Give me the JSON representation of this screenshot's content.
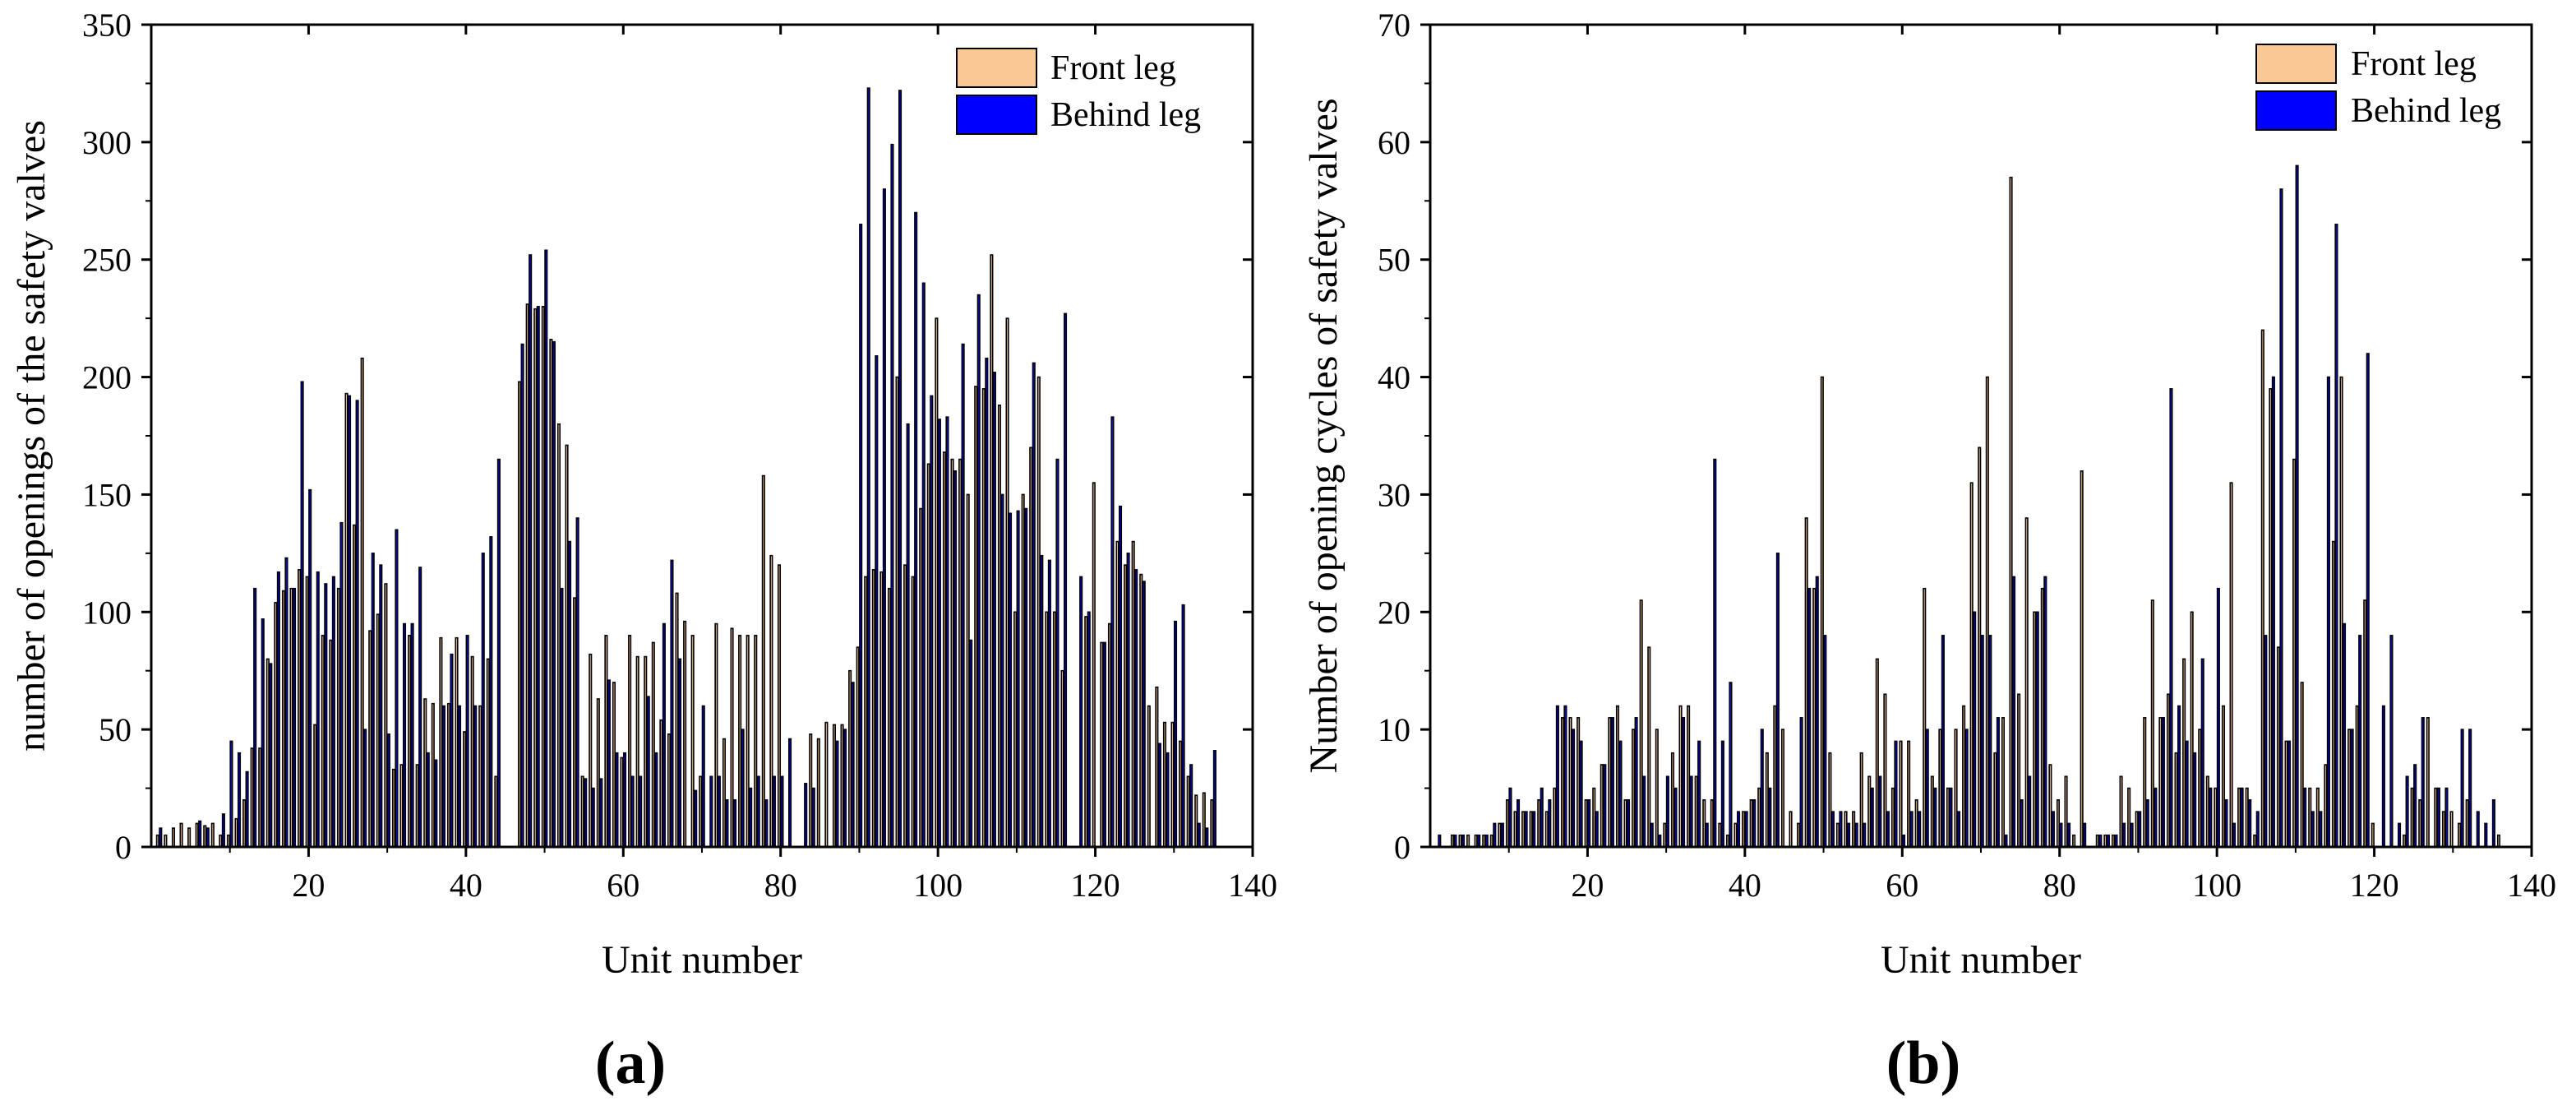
{
  "chart_data": [
    {
      "panel": "(a)",
      "type": "bar",
      "title": "",
      "xlabel": "Unit number",
      "ylabel": "number of openings of the safety valves",
      "xlim": [
        0,
        140
      ],
      "ylim": [
        0,
        350
      ],
      "xticks": [
        "20",
        "40",
        "60",
        "80",
        "100",
        "120",
        "140"
      ],
      "xtick_values": [
        20,
        40,
        60,
        80,
        100,
        120,
        140
      ],
      "yticks": [
        "0",
        "50",
        "100",
        "150",
        "200",
        "250",
        "300",
        "350"
      ],
      "ytick_values": [
        0,
        50,
        100,
        150,
        200,
        250,
        300,
        350
      ],
      "legend_position": "top-right",
      "series": [
        {
          "name": "Front leg",
          "color": "#F9C895",
          "values": [
            5,
            5,
            8,
            10,
            8,
            10,
            9,
            10,
            5,
            5,
            12,
            20,
            42,
            42,
            80,
            104,
            109,
            110,
            118,
            115,
            52,
            90,
            88,
            110,
            193,
            137,
            208,
            92,
            99,
            112,
            33,
            35,
            90,
            35,
            63,
            61,
            89,
            61,
            89,
            49,
            81,
            60,
            80,
            30,
            0,
            0,
            198,
            231,
            229,
            230,
            216,
            180,
            171,
            106,
            30,
            82,
            63,
            90,
            70,
            38,
            90,
            81,
            81,
            87,
            54,
            48,
            108,
            96,
            90,
            30,
            0,
            95,
            46,
            93,
            90,
            90,
            90,
            158,
            124,
            120,
            0,
            0,
            0,
            48,
            46,
            53,
            52,
            52,
            75,
            85,
            115,
            118,
            117,
            110,
            200,
            120,
            115,
            144,
            163,
            225,
            168,
            165,
            165,
            150,
            196,
            195,
            252,
            188,
            225,
            100,
            150,
            170,
            200,
            100,
            100,
            75,
            0,
            0,
            98,
            155,
            87,
            95,
            130,
            120,
            130,
            116,
            60,
            68,
            53,
            53,
            45,
            30,
            22,
            23,
            20,
            0
          ]
        },
        {
          "name": "Behind leg",
          "color": "#0000FF",
          "values": [
            8,
            0,
            0,
            0,
            0,
            11,
            8,
            0,
            14,
            45,
            40,
            32,
            110,
            97,
            78,
            117,
            123,
            110,
            198,
            152,
            117,
            112,
            115,
            138,
            192,
            190,
            50,
            125,
            120,
            48,
            135,
            95,
            95,
            119,
            40,
            37,
            60,
            82,
            60,
            90,
            60,
            125,
            132,
            165,
            0,
            0,
            214,
            252,
            230,
            254,
            215,
            110,
            130,
            140,
            29,
            25,
            29,
            71,
            40,
            40,
            30,
            30,
            64,
            40,
            95,
            122,
            80,
            0,
            24,
            60,
            30,
            30,
            20,
            20,
            50,
            25,
            30,
            20,
            30,
            30,
            46,
            0,
            27,
            25,
            0,
            0,
            45,
            50,
            70,
            265,
            323,
            209,
            280,
            299,
            322,
            180,
            270,
            240,
            192,
            182,
            183,
            160,
            214,
            88,
            235,
            208,
            202,
            150,
            142,
            143,
            144,
            206,
            124,
            122,
            165,
            227,
            0,
            115,
            100,
            0,
            87,
            183,
            145,
            125,
            118,
            113,
            0,
            44,
            40,
            96,
            103,
            35,
            10,
            8,
            41,
            0
          ]
        }
      ]
    },
    {
      "panel": "(b)",
      "type": "bar",
      "title": "",
      "xlabel": "Unit number",
      "ylabel": "Number of opening cycles of safety valves",
      "xlim": [
        0,
        140
      ],
      "ylim": [
        0,
        70
      ],
      "xticks": [
        "20",
        "40",
        "60",
        "80",
        "100",
        "120",
        "140"
      ],
      "xtick_values": [
        20,
        40,
        60,
        80,
        100,
        120,
        140
      ],
      "yticks": [
        "0",
        "10",
        "20",
        "30",
        "40",
        "50",
        "60",
        "70"
      ],
      "ytick_values": [
        0,
        10,
        20,
        30,
        40,
        50,
        60,
        70
      ],
      "legend_position": "top-right",
      "series": [
        {
          "name": "Front leg",
          "color": "#F9C895",
          "values": [
            0,
            0,
            1,
            1,
            1,
            1,
            1,
            1,
            2,
            4,
            3,
            3,
            3,
            4,
            3,
            5,
            11,
            11,
            11,
            4,
            5,
            7,
            11,
            12,
            4,
            10,
            21,
            17,
            10,
            2,
            8,
            12,
            12,
            6,
            4,
            4,
            2,
            1,
            2,
            3,
            4,
            5,
            8,
            12,
            10,
            3,
            2,
            28,
            22,
            40,
            8,
            2,
            3,
            3,
            8,
            6,
            16,
            13,
            5,
            9,
            9,
            4,
            22,
            6,
            10,
            5,
            10,
            12,
            31,
            34,
            40,
            8,
            11,
            57,
            13,
            28,
            20,
            22,
            7,
            4,
            6,
            1,
            32,
            0,
            1,
            1,
            1,
            6,
            5,
            3,
            11,
            21,
            11,
            13,
            8,
            16,
            20,
            10,
            6,
            5,
            12,
            31,
            5,
            5,
            1,
            44,
            39,
            17,
            9,
            33,
            14,
            5,
            5,
            7,
            26,
            40,
            10,
            12,
            21,
            2,
            0,
            0,
            0,
            1,
            5,
            4,
            11,
            5,
            3,
            3,
            2,
            4,
            0,
            0,
            0,
            1
          ]
        },
        {
          "name": "Behind leg",
          "color": "#0000FF",
          "values": [
            1,
            0,
            1,
            1,
            0,
            1,
            1,
            2,
            2,
            5,
            4,
            3,
            3,
            5,
            4,
            12,
            12,
            10,
            9,
            4,
            3,
            7,
            11,
            9,
            4,
            11,
            6,
            2,
            1,
            6,
            5,
            11,
            6,
            9,
            2,
            33,
            9,
            14,
            3,
            3,
            4,
            10,
            5,
            25,
            0,
            0,
            11,
            22,
            23,
            18,
            3,
            3,
            2,
            2,
            2,
            5,
            6,
            3,
            9,
            1,
            3,
            3,
            10,
            5,
            18,
            5,
            3,
            10,
            20,
            18,
            18,
            11,
            1,
            23,
            4,
            6,
            20,
            23,
            3,
            2,
            2,
            0,
            2,
            0,
            1,
            1,
            1,
            2,
            2,
            3,
            4,
            5,
            11,
            39,
            12,
            9,
            8,
            16,
            5,
            22,
            4,
            2,
            5,
            4,
            3,
            18,
            40,
            56,
            9,
            58,
            5,
            3,
            3,
            40,
            53,
            19,
            10,
            18,
            42,
            0,
            12,
            18,
            2,
            6,
            7,
            11,
            0,
            5,
            5,
            0,
            10,
            10,
            3,
            2,
            4,
            0
          ]
        }
      ]
    }
  ],
  "panel_labels": {
    "a": "(a)",
    "b": "(b)"
  }
}
